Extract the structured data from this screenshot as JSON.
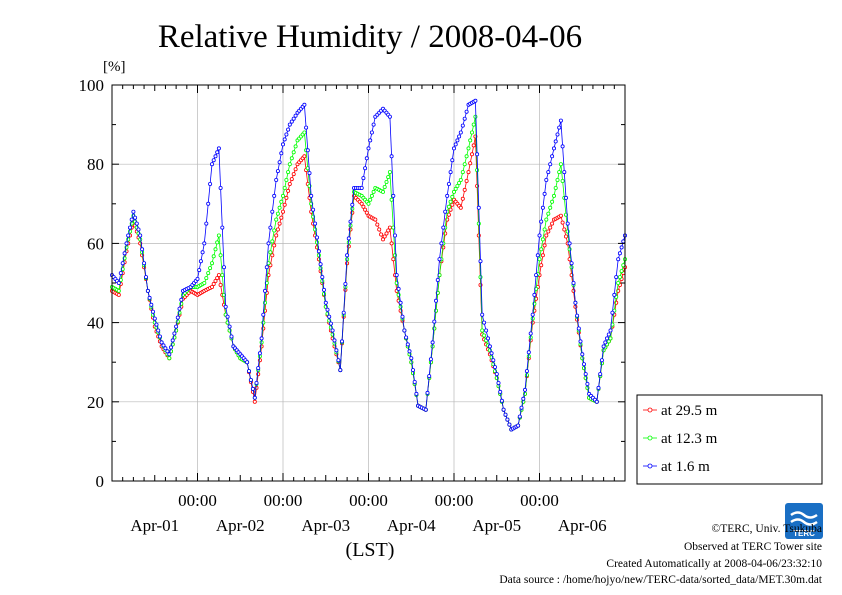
{
  "chart_data": {
    "type": "line",
    "title": "Relative Humidity / 2008-04-06",
    "ylabel": "[%]",
    "xlabel": "(LST)",
    "ylim": [
      0,
      100
    ],
    "xlim": [
      0,
      6
    ],
    "x_unit": "days from 2008-04-01 00:00 LST",
    "yticks": [
      0,
      20,
      40,
      60,
      80,
      100
    ],
    "xticks": [
      {
        "x": 1,
        "time": "00:00"
      },
      {
        "x": 2,
        "time": "00:00"
      },
      {
        "x": 3,
        "time": "00:00"
      },
      {
        "x": 4,
        "time": "00:00"
      },
      {
        "x": 5,
        "time": "00:00"
      }
    ],
    "day_labels": [
      {
        "x": 0.5,
        "label": "Apr-01"
      },
      {
        "x": 1.5,
        "label": "Apr-02"
      },
      {
        "x": 2.5,
        "label": "Apr-03"
      },
      {
        "x": 3.5,
        "label": "Apr-04"
      },
      {
        "x": 4.5,
        "label": "Apr-05"
      },
      {
        "x": 5.5,
        "label": "Apr-06"
      }
    ],
    "grid": true,
    "legend_position": "right-bottom, outside plot",
    "series": [
      {
        "name": "at 29.5 m",
        "color": "#ff0000",
        "points": [
          [
            0,
            48
          ],
          [
            0.08,
            47
          ],
          [
            0.17,
            58
          ],
          [
            0.25,
            66
          ],
          [
            0.33,
            60
          ],
          [
            0.42,
            48
          ],
          [
            0.5,
            39
          ],
          [
            0.58,
            34
          ],
          [
            0.67,
            31
          ],
          [
            0.75,
            38
          ],
          [
            0.83,
            46
          ],
          [
            0.92,
            48
          ],
          [
            1.0,
            47
          ],
          [
            1.08,
            48
          ],
          [
            1.17,
            49
          ],
          [
            1.25,
            52
          ],
          [
            1.33,
            42
          ],
          [
            1.42,
            34
          ],
          [
            1.5,
            31
          ],
          [
            1.58,
            30
          ],
          [
            1.67,
            20
          ],
          [
            1.75,
            34
          ],
          [
            1.83,
            52
          ],
          [
            1.92,
            62
          ],
          [
            2.0,
            68
          ],
          [
            2.08,
            75
          ],
          [
            2.17,
            80
          ],
          [
            2.25,
            82
          ],
          [
            2.33,
            68
          ],
          [
            2.42,
            56
          ],
          [
            2.5,
            44
          ],
          [
            2.58,
            36
          ],
          [
            2.67,
            28
          ],
          [
            2.75,
            55
          ],
          [
            2.83,
            72
          ],
          [
            2.92,
            70
          ],
          [
            3.0,
            67
          ],
          [
            3.08,
            66
          ],
          [
            3.17,
            61
          ],
          [
            3.25,
            64
          ],
          [
            3.33,
            48
          ],
          [
            3.42,
            38
          ],
          [
            3.5,
            30
          ],
          [
            3.58,
            19
          ],
          [
            3.67,
            18
          ],
          [
            3.75,
            34
          ],
          [
            3.83,
            52
          ],
          [
            3.92,
            66
          ],
          [
            4.0,
            71
          ],
          [
            4.08,
            69
          ],
          [
            4.17,
            78
          ],
          [
            4.25,
            87
          ],
          [
            4.33,
            37
          ],
          [
            4.42,
            32
          ],
          [
            4.5,
            26
          ],
          [
            4.58,
            18
          ],
          [
            4.67,
            13
          ],
          [
            4.75,
            14
          ],
          [
            4.83,
            22
          ],
          [
            4.92,
            40
          ],
          [
            5.0,
            52
          ],
          [
            5.08,
            62
          ],
          [
            5.17,
            66
          ],
          [
            5.25,
            67
          ],
          [
            5.33,
            60
          ],
          [
            5.42,
            44
          ],
          [
            5.5,
            31
          ],
          [
            5.58,
            21
          ],
          [
            5.67,
            20
          ],
          [
            5.75,
            33
          ],
          [
            5.83,
            36
          ],
          [
            5.92,
            48
          ],
          [
            6.0,
            54
          ]
        ]
      },
      {
        "name": "at 12.3 m",
        "color": "#00ff00",
        "points": [
          [
            0,
            49
          ],
          [
            0.08,
            48
          ],
          [
            0.17,
            59
          ],
          [
            0.25,
            67
          ],
          [
            0.33,
            61
          ],
          [
            0.42,
            48
          ],
          [
            0.5,
            40
          ],
          [
            0.58,
            35
          ],
          [
            0.67,
            31
          ],
          [
            0.75,
            38
          ],
          [
            0.83,
            47
          ],
          [
            0.92,
            49
          ],
          [
            1.0,
            49
          ],
          [
            1.08,
            50
          ],
          [
            1.17,
            55
          ],
          [
            1.25,
            62
          ],
          [
            1.33,
            42
          ],
          [
            1.42,
            34
          ],
          [
            1.5,
            31
          ],
          [
            1.58,
            30
          ],
          [
            1.67,
            21
          ],
          [
            1.75,
            35
          ],
          [
            1.83,
            55
          ],
          [
            1.92,
            66
          ],
          [
            2.0,
            72
          ],
          [
            2.08,
            80
          ],
          [
            2.17,
            86
          ],
          [
            2.25,
            88
          ],
          [
            2.33,
            70
          ],
          [
            2.42,
            57
          ],
          [
            2.5,
            44
          ],
          [
            2.58,
            37
          ],
          [
            2.67,
            28
          ],
          [
            2.75,
            56
          ],
          [
            2.83,
            73
          ],
          [
            2.92,
            72
          ],
          [
            3.0,
            70
          ],
          [
            3.08,
            74
          ],
          [
            3.17,
            73
          ],
          [
            3.25,
            78
          ],
          [
            3.33,
            50
          ],
          [
            3.42,
            38
          ],
          [
            3.5,
            30
          ],
          [
            3.58,
            19
          ],
          [
            3.67,
            18
          ],
          [
            3.75,
            34
          ],
          [
            3.83,
            52
          ],
          [
            3.92,
            68
          ],
          [
            4.0,
            73
          ],
          [
            4.08,
            76
          ],
          [
            4.17,
            84
          ],
          [
            4.25,
            92
          ],
          [
            4.33,
            38
          ],
          [
            4.42,
            33
          ],
          [
            4.5,
            26
          ],
          [
            4.58,
            18
          ],
          [
            4.67,
            13
          ],
          [
            4.75,
            14
          ],
          [
            4.83,
            22
          ],
          [
            4.92,
            41
          ],
          [
            5.0,
            56
          ],
          [
            5.08,
            66
          ],
          [
            5.17,
            72
          ],
          [
            5.25,
            80
          ],
          [
            5.33,
            63
          ],
          [
            5.42,
            45
          ],
          [
            5.5,
            31
          ],
          [
            5.58,
            21
          ],
          [
            5.67,
            20
          ],
          [
            5.75,
            33
          ],
          [
            5.83,
            36
          ],
          [
            5.92,
            50
          ],
          [
            6.0,
            56
          ]
        ]
      },
      {
        "name": "at 1.6 m",
        "color": "#0000ff",
        "points": [
          [
            0,
            52
          ],
          [
            0.08,
            50
          ],
          [
            0.17,
            60
          ],
          [
            0.25,
            68
          ],
          [
            0.33,
            62
          ],
          [
            0.42,
            48
          ],
          [
            0.5,
            41
          ],
          [
            0.58,
            35
          ],
          [
            0.67,
            32
          ],
          [
            0.75,
            39
          ],
          [
            0.83,
            48
          ],
          [
            0.92,
            49
          ],
          [
            1.0,
            51
          ],
          [
            1.08,
            60
          ],
          [
            1.17,
            80
          ],
          [
            1.25,
            84
          ],
          [
            1.33,
            44
          ],
          [
            1.42,
            34
          ],
          [
            1.5,
            32
          ],
          [
            1.58,
            30
          ],
          [
            1.67,
            21
          ],
          [
            1.75,
            36
          ],
          [
            1.83,
            60
          ],
          [
            1.92,
            76
          ],
          [
            2.0,
            85
          ],
          [
            2.08,
            90
          ],
          [
            2.17,
            93
          ],
          [
            2.25,
            95
          ],
          [
            2.33,
            72
          ],
          [
            2.42,
            58
          ],
          [
            2.5,
            45
          ],
          [
            2.58,
            38
          ],
          [
            2.67,
            28
          ],
          [
            2.75,
            57
          ],
          [
            2.83,
            74
          ],
          [
            2.92,
            74
          ],
          [
            3.0,
            84
          ],
          [
            3.08,
            92
          ],
          [
            3.17,
            94
          ],
          [
            3.25,
            92
          ],
          [
            3.33,
            52
          ],
          [
            3.42,
            38
          ],
          [
            3.5,
            31
          ],
          [
            3.58,
            19
          ],
          [
            3.67,
            18
          ],
          [
            3.75,
            35
          ],
          [
            3.83,
            56
          ],
          [
            3.92,
            72
          ],
          [
            4.0,
            84
          ],
          [
            4.08,
            88
          ],
          [
            4.17,
            95
          ],
          [
            4.25,
            96
          ],
          [
            4.33,
            42
          ],
          [
            4.42,
            34
          ],
          [
            4.5,
            27
          ],
          [
            4.58,
            18
          ],
          [
            4.67,
            13
          ],
          [
            4.75,
            14
          ],
          [
            4.83,
            23
          ],
          [
            4.92,
            42
          ],
          [
            5.0,
            62
          ],
          [
            5.08,
            76
          ],
          [
            5.17,
            84
          ],
          [
            5.25,
            91
          ],
          [
            5.33,
            65
          ],
          [
            5.42,
            45
          ],
          [
            5.5,
            32
          ],
          [
            5.58,
            22
          ],
          [
            5.67,
            20
          ],
          [
            5.75,
            34
          ],
          [
            5.83,
            38
          ],
          [
            5.92,
            56
          ],
          [
            6.0,
            62
          ]
        ]
      }
    ]
  },
  "credits": {
    "line1": "©TERC, Univ. Tsukuba",
    "line2": "Observed at TERC Tower site",
    "line3": "Created Automatically at 2008-04-06/23:32:10",
    "line4": "Data source : /home/hojyo/new/TERC-data/sorted_data/MET.30m.dat"
  },
  "logo": {
    "text": "TERC",
    "color": "#1a6fc4"
  }
}
